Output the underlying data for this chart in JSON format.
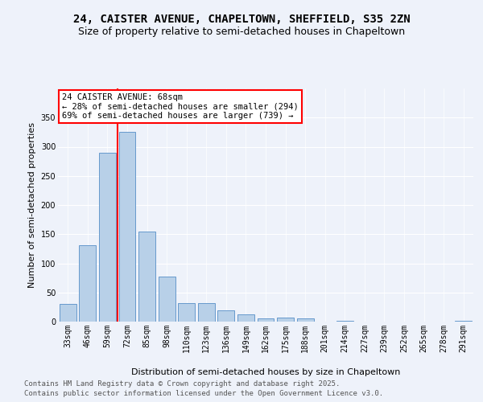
{
  "title": "24, CAISTER AVENUE, CHAPELTOWN, SHEFFIELD, S35 2ZN",
  "subtitle": "Size of property relative to semi-detached houses in Chapeltown",
  "xlabel": "Distribution of semi-detached houses by size in Chapeltown",
  "ylabel": "Number of semi-detached properties",
  "categories": [
    "33sqm",
    "46sqm",
    "59sqm",
    "72sqm",
    "85sqm",
    "98sqm",
    "110sqm",
    "123sqm",
    "136sqm",
    "149sqm",
    "162sqm",
    "175sqm",
    "188sqm",
    "201sqm",
    "214sqm",
    "227sqm",
    "239sqm",
    "252sqm",
    "265sqm",
    "278sqm",
    "291sqm"
  ],
  "values": [
    30,
    131,
    290,
    325,
    155,
    77,
    32,
    32,
    20,
    13,
    5,
    7,
    5,
    0,
    1,
    0,
    0,
    0,
    0,
    0,
    2
  ],
  "bar_color": "#b8d0e8",
  "bar_edge_color": "#6699cc",
  "vline_color": "red",
  "vline_position": 2.5,
  "annotation_title": "24 CAISTER AVENUE: 68sqm",
  "annotation_line2": "← 28% of semi-detached houses are smaller (294)",
  "annotation_line3": "69% of semi-detached houses are larger (739) →",
  "annotation_box_color": "white",
  "annotation_box_edge": "red",
  "ylim": [
    0,
    400
  ],
  "yticks": [
    0,
    50,
    100,
    150,
    200,
    250,
    300,
    350
  ],
  "background_color": "#eef2fa",
  "footer_line1": "Contains HM Land Registry data © Crown copyright and database right 2025.",
  "footer_line2": "Contains public sector information licensed under the Open Government Licence v3.0.",
  "title_fontsize": 10,
  "subtitle_fontsize": 9,
  "axis_label_fontsize": 8,
  "tick_fontsize": 7,
  "footer_fontsize": 6.5,
  "annotation_fontsize": 7.5
}
